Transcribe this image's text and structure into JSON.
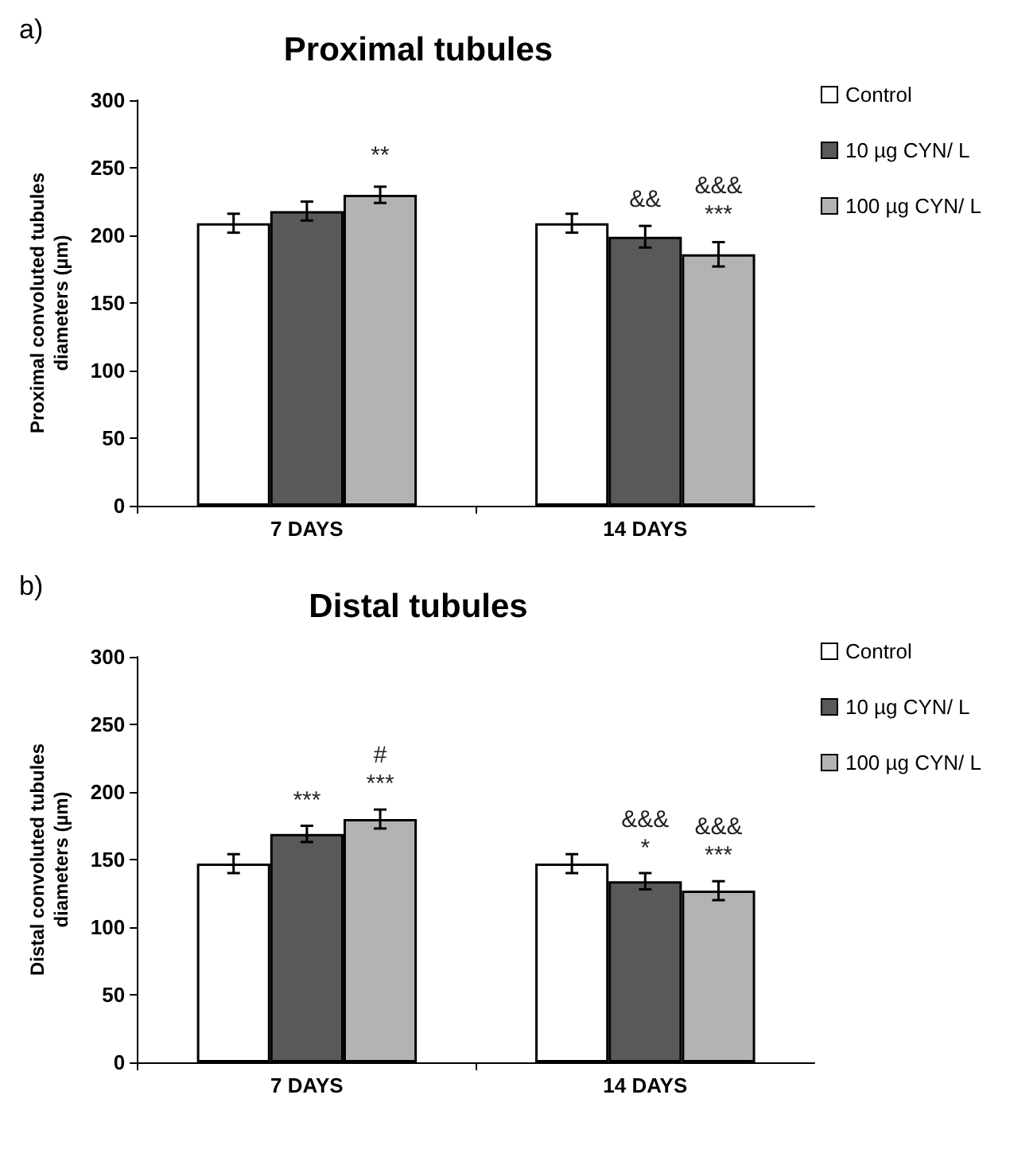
{
  "chart_data": [
    {
      "type": "bar",
      "title": "Proximal tubules",
      "ylabel": "Proximal convoluted tubules\ndiameters (µm)",
      "annotations": [
        "a)"
      ],
      "categories": [
        "7 DAYS",
        "14 DAYS"
      ],
      "ylim": [
        0,
        300
      ],
      "yticks": [
        0,
        50,
        100,
        150,
        200,
        250,
        300
      ],
      "legend": "top right",
      "grid": false,
      "series": [
        {
          "name": "Control",
          "color": "#ffffff",
          "values": [
            209,
            209
          ],
          "errors": [
            7,
            7
          ],
          "value_labels": [
            null,
            null
          ]
        },
        {
          "name": "10 µg CYN/ L",
          "color": "#595959",
          "values": [
            218,
            199
          ],
          "errors": [
            7,
            8
          ],
          "value_labels": [
            null,
            "&&"
          ]
        },
        {
          "name": "100 µg CYN/ L",
          "color": "#b3b3b3",
          "values": [
            230,
            186
          ],
          "errors": [
            6,
            9
          ],
          "value_labels": [
            "**",
            "&&&\n***"
          ]
        }
      ]
    },
    {
      "type": "bar",
      "title": "Distal tubules",
      "ylabel": "Distal convoluted tubules\ndiameters (µm)",
      "annotations": [
        "b)"
      ],
      "categories": [
        "7 DAYS",
        "14 DAYS"
      ],
      "ylim": [
        0,
        300
      ],
      "yticks": [
        0,
        50,
        100,
        150,
        200,
        250,
        300
      ],
      "legend": "top right",
      "grid": false,
      "series": [
        {
          "name": "Control",
          "color": "#ffffff",
          "values": [
            147,
            147
          ],
          "errors": [
            7,
            7
          ],
          "value_labels": [
            null,
            null
          ]
        },
        {
          "name": "10 µg CYN/ L",
          "color": "#595959",
          "values": [
            169,
            134
          ],
          "errors": [
            6,
            6
          ],
          "value_labels": [
            "***",
            "&&&\n*"
          ]
        },
        {
          "name": "100 µg CYN/ L",
          "color": "#b3b3b3",
          "values": [
            180,
            127
          ],
          "errors": [
            7,
            7
          ],
          "value_labels": [
            "#\n***",
            "&&&\n***"
          ]
        }
      ]
    }
  ]
}
